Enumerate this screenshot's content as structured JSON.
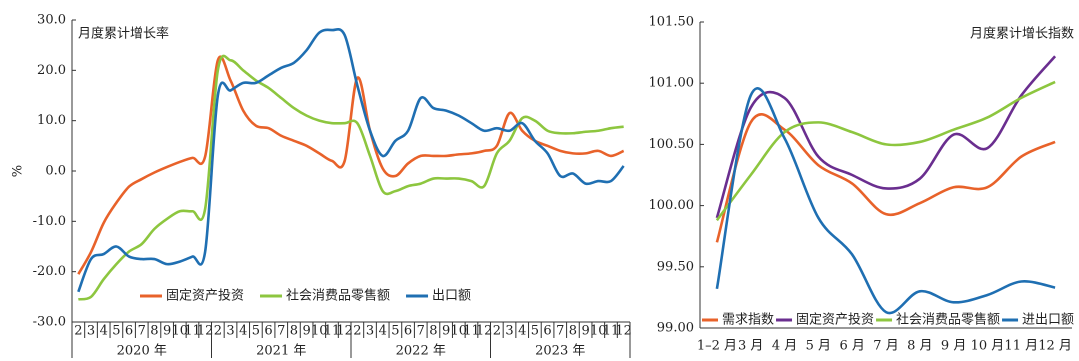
{
  "chart_data": [
    {
      "type": "line",
      "annotation": "月度累计增长率",
      "ylabel": "%",
      "categories": [
        "2",
        "3",
        "4",
        "5",
        "6",
        "7",
        "8",
        "9",
        "10",
        "11",
        "12",
        "2",
        "3",
        "4",
        "5",
        "6",
        "7",
        "8",
        "9",
        "10",
        "11",
        "12",
        "2",
        "3",
        "4",
        "5",
        "6",
        "7",
        "8",
        "9",
        "10",
        "11",
        "12",
        "2",
        "3",
        "4",
        "5",
        "6",
        "7",
        "8",
        "9",
        "10",
        "11",
        "12"
      ],
      "groups": [
        "2020 年",
        "2021 年",
        "2022 年",
        "2023 年"
      ],
      "series": [
        {
          "name": "固定资产投资",
          "color": "#e8622a",
          "values": [
            -20.5,
            -16.1,
            -10.3,
            -6.3,
            -3.1,
            -1.6,
            -0.3,
            0.8,
            1.8,
            2.6,
            2.9,
            22,
            18,
            12,
            9,
            8.5,
            7,
            6,
            5,
            3.5,
            2,
            2,
            18.5,
            8,
            0.5,
            -1,
            1.5,
            3,
            3,
            3,
            3.3,
            3.5,
            4,
            5,
            11.5,
            8,
            6,
            5,
            4,
            3.5,
            3.5,
            4,
            3,
            4
          ]
        },
        {
          "name": "社会消费品零售额",
          "color": "#8dc63f",
          "values": [
            -25.5,
            -25,
            -21.5,
            -18.5,
            -16,
            -14.5,
            -11.5,
            -9.5,
            -8,
            -8,
            -7.5,
            20,
            22,
            20,
            18,
            16.5,
            14.5,
            12.5,
            11,
            10,
            9.5,
            9.5,
            9.5,
            3,
            -4,
            -4,
            -3,
            -2.5,
            -1.5,
            -1.5,
            -1.5,
            -2,
            -3,
            3.5,
            6,
            10.5,
            10,
            8,
            7.5,
            7.5,
            7.8,
            8,
            8.5,
            8.8
          ]
        },
        {
          "name": "出口额",
          "color": "#1f6fb2",
          "values": [
            -24,
            -17.5,
            -16.5,
            -15,
            -17,
            -17.5,
            -17.5,
            -18.5,
            -18,
            -17,
            -16,
            15,
            16,
            17.5,
            17.5,
            19,
            20.5,
            21.5,
            24,
            27.5,
            28,
            27,
            17,
            8,
            3,
            6,
            8,
            14.5,
            12.5,
            12,
            11,
            9.5,
            8,
            8.5,
            8,
            9.5,
            6,
            3.5,
            -1,
            -0.5,
            -2.5,
            -2,
            -2,
            1
          ]
        }
      ],
      "ylim": [
        -30,
        30
      ],
      "yticks": [
        {
          "value": -30,
          "label": "-30.0"
        },
        {
          "value": -20,
          "label": "-20.0"
        },
        {
          "value": -10,
          "label": "-10.0"
        },
        {
          "value": 0,
          "label": "0.0"
        },
        {
          "value": 10,
          "label": "10.0"
        },
        {
          "value": 20,
          "label": "20.0"
        },
        {
          "value": 30,
          "label": "30.0"
        }
      ],
      "grid": false,
      "legend": "lower center"
    },
    {
      "type": "line",
      "annotation": "月度累计增长指数",
      "categories": [
        "1–2 月",
        "3 月",
        "4 月",
        "5 月",
        "6 月",
        "7 月",
        "8 月",
        "9 月",
        "10 月",
        "11 月",
        "12 月"
      ],
      "series": [
        {
          "name": "需求指数",
          "color": "#e8622a",
          "values": [
            99.7,
            100.68,
            100.62,
            100.33,
            100.18,
            99.93,
            100.02,
            100.15,
            100.15,
            100.4,
            100.52
          ]
        },
        {
          "name": "固定资产投资",
          "color": "#6a2e8f",
          "values": [
            99.9,
            100.8,
            100.88,
            100.4,
            100.25,
            100.14,
            100.22,
            100.58,
            100.47,
            100.9,
            101.22
          ]
        },
        {
          "name": "社会消费品零售额",
          "color": "#8dc63f",
          "values": [
            99.88,
            100.25,
            100.6,
            100.68,
            100.6,
            100.5,
            100.52,
            100.62,
            100.72,
            100.88,
            101.01
          ]
        },
        {
          "name": "进出口额",
          "color": "#1f6fb2",
          "values": [
            99.32,
            100.9,
            100.55,
            99.9,
            99.6,
            99.13,
            99.3,
            99.21,
            99.27,
            99.38,
            99.33
          ]
        }
      ],
      "ylim": [
        99,
        101.5
      ],
      "yticks": [
        {
          "value": 99,
          "label": "99.00"
        },
        {
          "value": 99.5,
          "label": "99.50"
        },
        {
          "value": 100,
          "label": "100.00"
        },
        {
          "value": 100.5,
          "label": "100.50"
        },
        {
          "value": 101,
          "label": "101.00"
        },
        {
          "value": 101.5,
          "label": "101.50"
        }
      ],
      "grid": false,
      "legend": "lower center"
    }
  ]
}
